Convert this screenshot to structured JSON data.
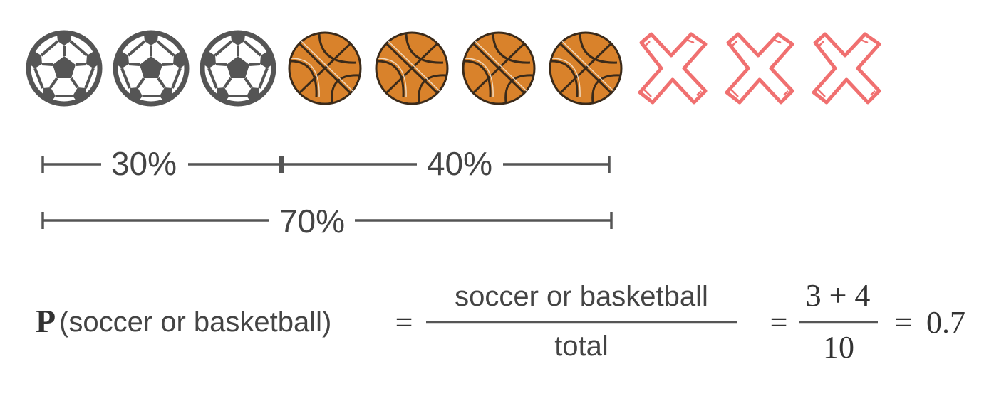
{
  "items": [
    {
      "kind": "soccer",
      "icon": "soccer-ball-icon"
    },
    {
      "kind": "soccer",
      "icon": "soccer-ball-icon"
    },
    {
      "kind": "soccer",
      "icon": "soccer-ball-icon"
    },
    {
      "kind": "basketball",
      "icon": "basketball-icon"
    },
    {
      "kind": "basketball",
      "icon": "basketball-icon"
    },
    {
      "kind": "basketball",
      "icon": "basketball-icon"
    },
    {
      "kind": "basketball",
      "icon": "basketball-icon"
    },
    {
      "kind": "none",
      "icon": "red-x-icon"
    },
    {
      "kind": "none",
      "icon": "red-x-icon"
    },
    {
      "kind": "none",
      "icon": "red-x-icon"
    }
  ],
  "brackets": {
    "soccer_share": "30%",
    "basketball_share": "40%",
    "combined_share": "70%"
  },
  "formula": {
    "p_symbol": "P",
    "p_argument": "(soccer or basketball)",
    "equals": "=",
    "numerator_text": "soccer or basketball",
    "denominator_text": "total",
    "numerator_values": "3 + 4",
    "denominator_value": "10",
    "result": "0.7"
  },
  "colors": {
    "soccer": "#555555",
    "basketball": "#D9822B",
    "x_mark": "#F07070",
    "line": "#555555"
  }
}
